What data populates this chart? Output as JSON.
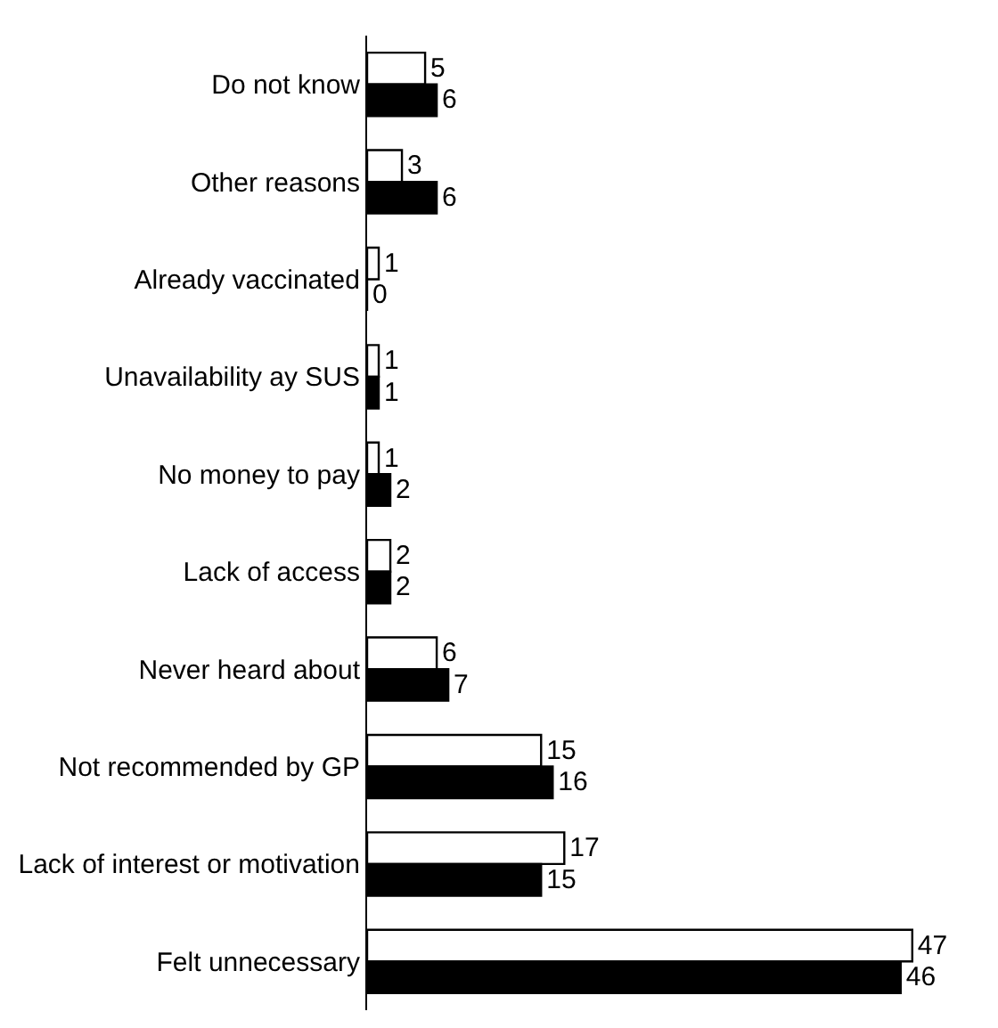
{
  "chart_data": {
    "type": "bar",
    "orientation": "horizontal",
    "data_labels": true,
    "categories": [
      "Do not know",
      "Other reasons",
      "Already vaccinated",
      "Unavailability ay SUS",
      "No money to pay",
      "Lack of access",
      "Never heard about",
      "Not recommended by GP",
      "Lack of interest or motivation",
      "Felt unnecessary"
    ],
    "series": [
      {
        "color": "#ffffff",
        "values": [
          5,
          3,
          1,
          1,
          1,
          2,
          6,
          15,
          17,
          47
        ]
      },
      {
        "color": "#000000",
        "values": [
          6,
          6,
          0,
          1,
          2,
          2,
          7,
          16,
          15,
          46
        ]
      }
    ]
  }
}
